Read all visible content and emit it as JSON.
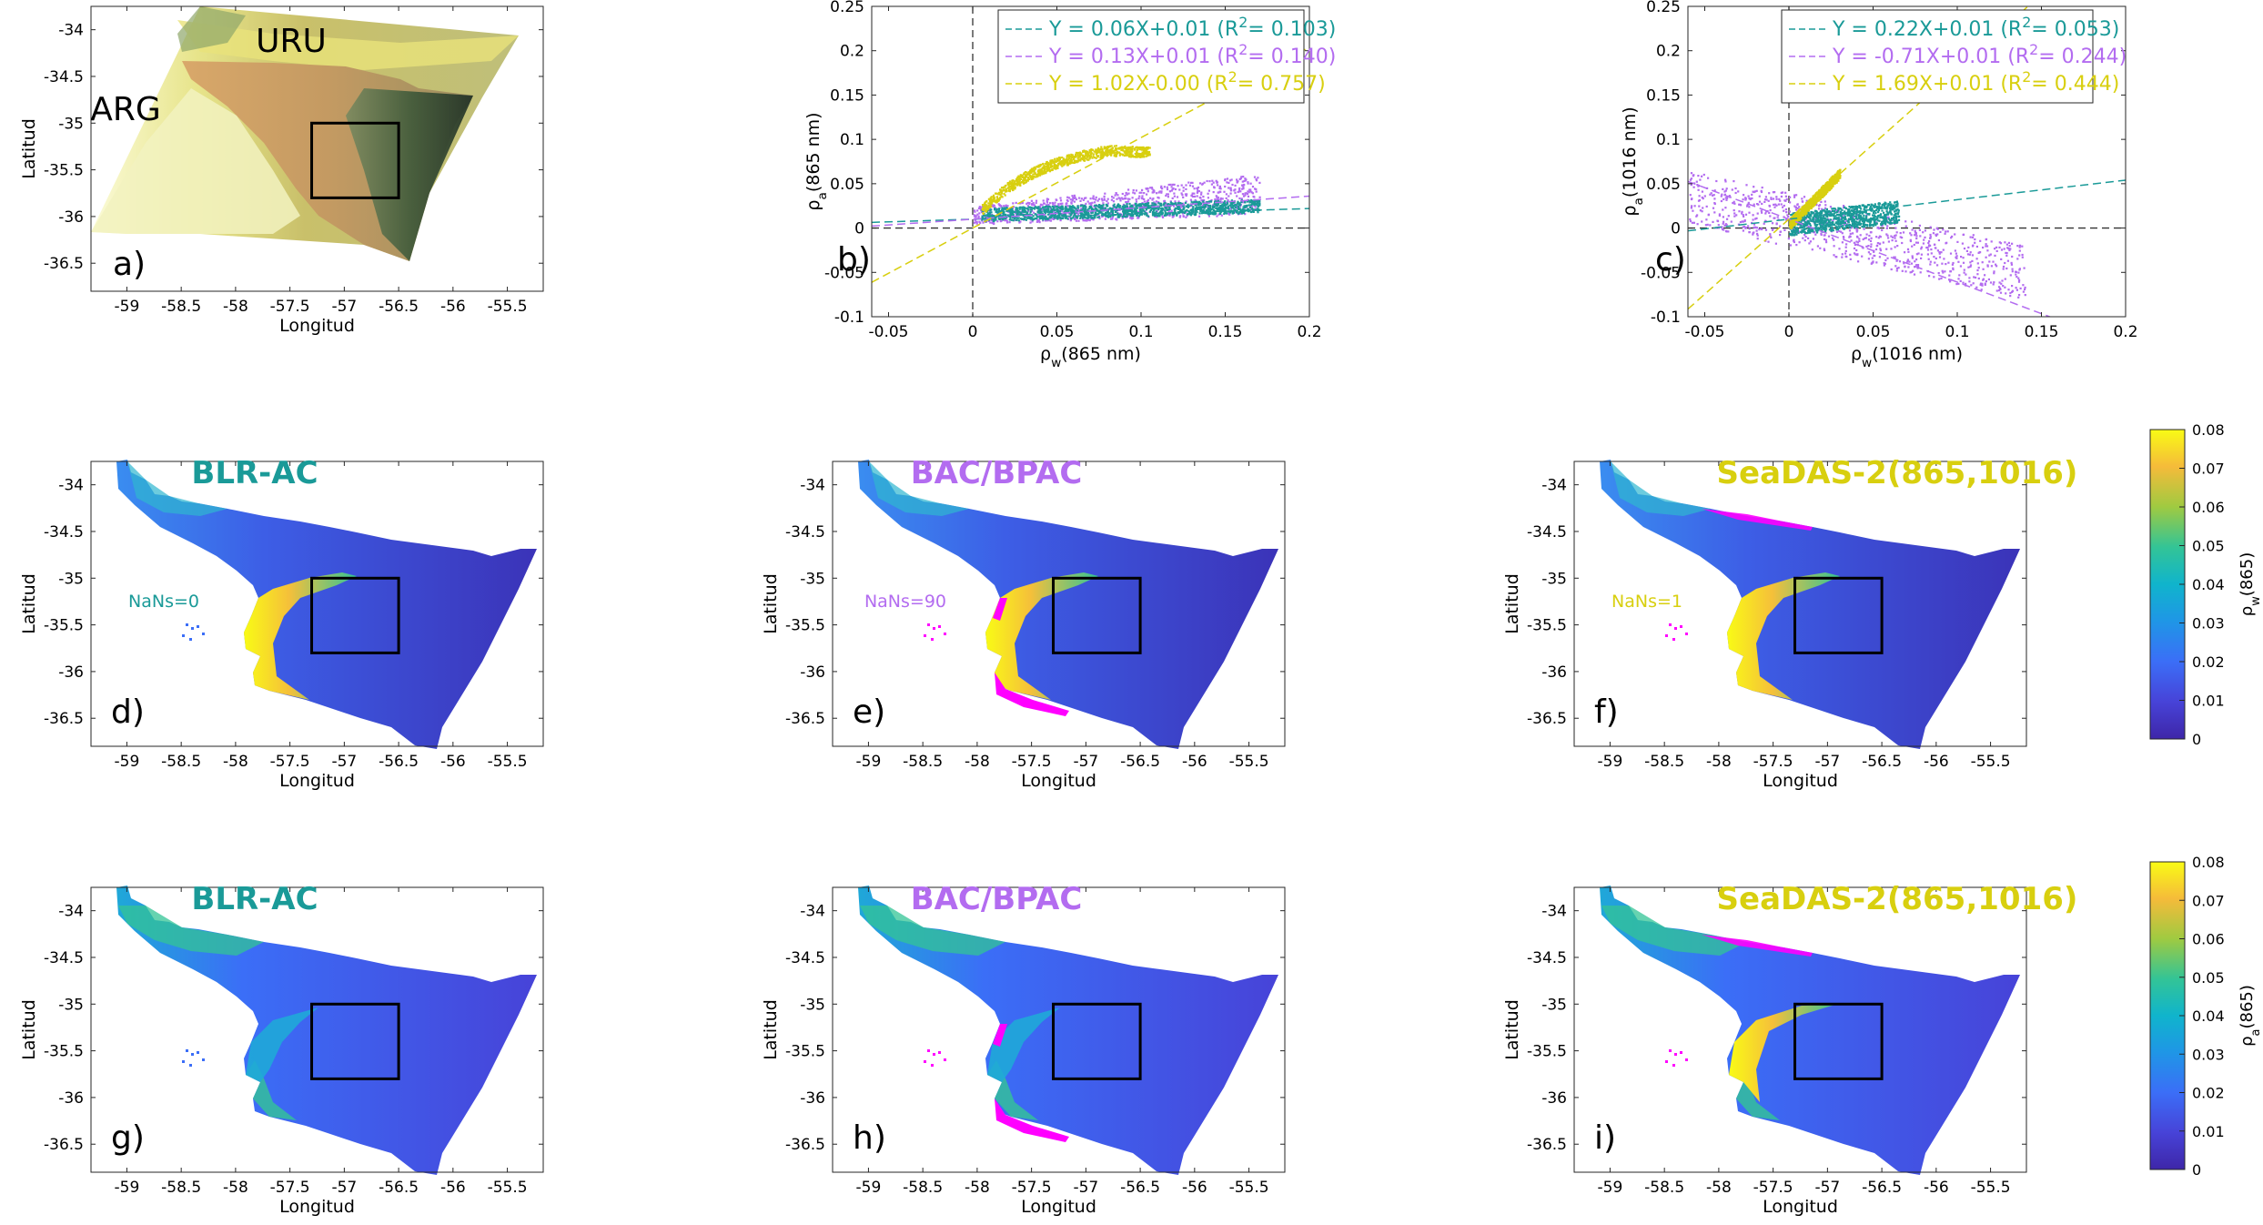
{
  "figure": {
    "map_panels": {
      "xticks": [
        "-59",
        "-58.5",
        "-58",
        "-57.5",
        "-57",
        "-56.5",
        "-56",
        "-55.5"
      ],
      "yticks": [
        "-34",
        "-34.5",
        "-35",
        "-35.5",
        "-36",
        "-36.5"
      ],
      "xlabel": "Longitud",
      "ylabel": "Latitud"
    },
    "panel_a": {
      "letter": "a)",
      "labels": [
        "URU",
        "ARG"
      ]
    },
    "colors": {
      "teal": "#1a9a98",
      "purple": "#b36cf0",
      "yellow": "#d8cf0f",
      "magenta": "#ff00ff",
      "box": "#000000"
    },
    "maps": [
      {
        "letter": "d)",
        "title": "BLR-AC",
        "color": "teal",
        "nans": "NaNs=0",
        "variant": "rho_w",
        "method": "blr"
      },
      {
        "letter": "e)",
        "title": "BAC/BPAC",
        "color": "purple",
        "nans": "NaNs=90",
        "variant": "rho_w",
        "method": "bac"
      },
      {
        "letter": "f)",
        "title": "SeaDAS-2(865,1016)",
        "color": "yellow",
        "nans": "NaNs=1",
        "variant": "rho_w",
        "method": "seadas"
      },
      {
        "letter": "g)",
        "title": "BLR-AC",
        "color": "teal",
        "nans": "",
        "variant": "rho_a",
        "method": "blr"
      },
      {
        "letter": "h)",
        "title": "BAC/BPAC",
        "color": "purple",
        "nans": "",
        "variant": "rho_a",
        "method": "bac"
      },
      {
        "letter": "i)",
        "title": "SeaDAS-2(865,1016)",
        "color": "yellow",
        "nans": "",
        "variant": "rho_a",
        "method": "seadas"
      }
    ],
    "colorbars": [
      {
        "label_html": "ρ<sub>w</sub>(865)",
        "ticks": [
          "0",
          "0.01",
          "0.02",
          "0.03",
          "0.04",
          "0.05",
          "0.06",
          "0.07",
          "0.08"
        ]
      },
      {
        "label_html": "ρ<sub>a</sub>(865)",
        "ticks": [
          "0",
          "0.01",
          "0.02",
          "0.03",
          "0.04",
          "0.05",
          "0.06",
          "0.07",
          "0.08"
        ]
      }
    ]
  },
  "chart_data": [
    {
      "panel": "b)",
      "type": "scatter",
      "xlabel": "ρw(865 nm)",
      "ylabel": "ρa(865 nm)",
      "xlim": [
        -0.06,
        0.2
      ],
      "ylim": [
        -0.1,
        0.25
      ],
      "xticks": [
        "-0.05",
        "0",
        "0.05",
        "0.1",
        "0.15",
        "0.2"
      ],
      "yticks": [
        "-0.1",
        "-0.05",
        "0",
        "0.05",
        "0.1",
        "0.15",
        "0.2",
        "0.25"
      ],
      "legend_position": "top-right",
      "series": [
        {
          "method": "BLR-AC",
          "color": "teal",
          "fit": {
            "slope": 0.06,
            "intercept": 0.01
          },
          "legend": "Y = 0.06X+0.01 (R2= 0.103)"
        },
        {
          "method": "BAC/BPAC",
          "color": "purple",
          "fit": {
            "slope": 0.13,
            "intercept": 0.01
          },
          "legend": "Y = 0.13X+0.01 (R2= 0.140)"
        },
        {
          "method": "SeaDAS-2(865,1016)",
          "color": "yellow",
          "fit": {
            "slope": 1.02,
            "intercept": 0.0
          },
          "legend": "Y = 1.02X-0.00 (R2= 0.757)"
        }
      ]
    },
    {
      "panel": "c)",
      "type": "scatter",
      "xlabel": "ρw(1016 nm)",
      "ylabel": "ρa(1016 nm)",
      "xlim": [
        -0.06,
        0.2
      ],
      "ylim": [
        -0.1,
        0.25
      ],
      "xticks": [
        "-0.05",
        "0",
        "0.05",
        "0.1",
        "0.15",
        "0.2"
      ],
      "yticks": [
        "-0.1",
        "-0.05",
        "0",
        "0.05",
        "0.1",
        "0.15",
        "0.2",
        "0.25"
      ],
      "legend_position": "top-right",
      "series": [
        {
          "method": "BLR-AC",
          "color": "teal",
          "fit": {
            "slope": 0.22,
            "intercept": 0.01
          },
          "legend": "Y = 0.22X+0.01 (R2= 0.053)"
        },
        {
          "method": "BAC/BPAC",
          "color": "purple",
          "fit": {
            "slope": -0.71,
            "intercept": 0.01
          },
          "legend": "Y = -0.71X+0.01 (R2= 0.244)"
        },
        {
          "method": "SeaDAS-2(865,1016)",
          "color": "yellow",
          "fit": {
            "slope": 1.69,
            "intercept": 0.01
          },
          "legend": "Y = 1.69X+0.01 (R2= 0.444)"
        }
      ]
    }
  ]
}
